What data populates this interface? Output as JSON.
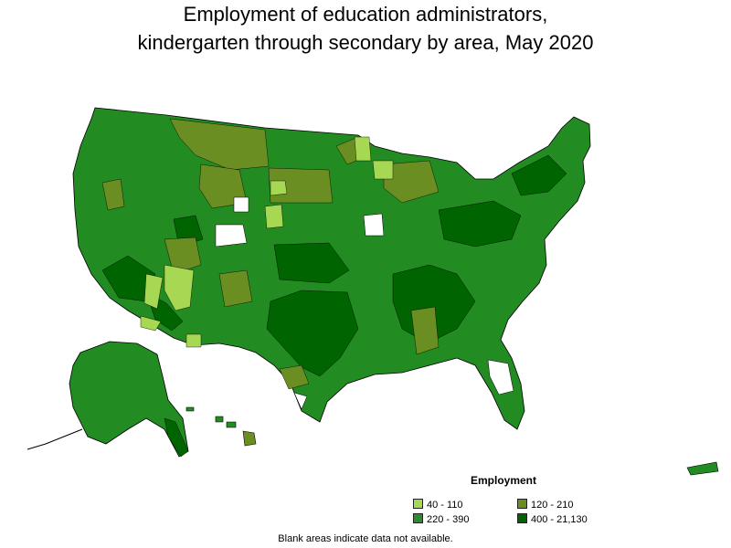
{
  "title_line1": "Employment of education administrators,",
  "title_line2": "kindergarten through secondary by area, May 2020",
  "legend": {
    "title": "Employment",
    "items": [
      {
        "label": "40 - 110",
        "color": "#a6d854"
      },
      {
        "label": "120 - 210",
        "color": "#6b8e23"
      },
      {
        "label": "220 - 390",
        "color": "#2e8b2e"
      },
      {
        "label": "400 - 21,130",
        "color": "#006400"
      }
    ]
  },
  "note": "Blank areas indicate data not available."
}
